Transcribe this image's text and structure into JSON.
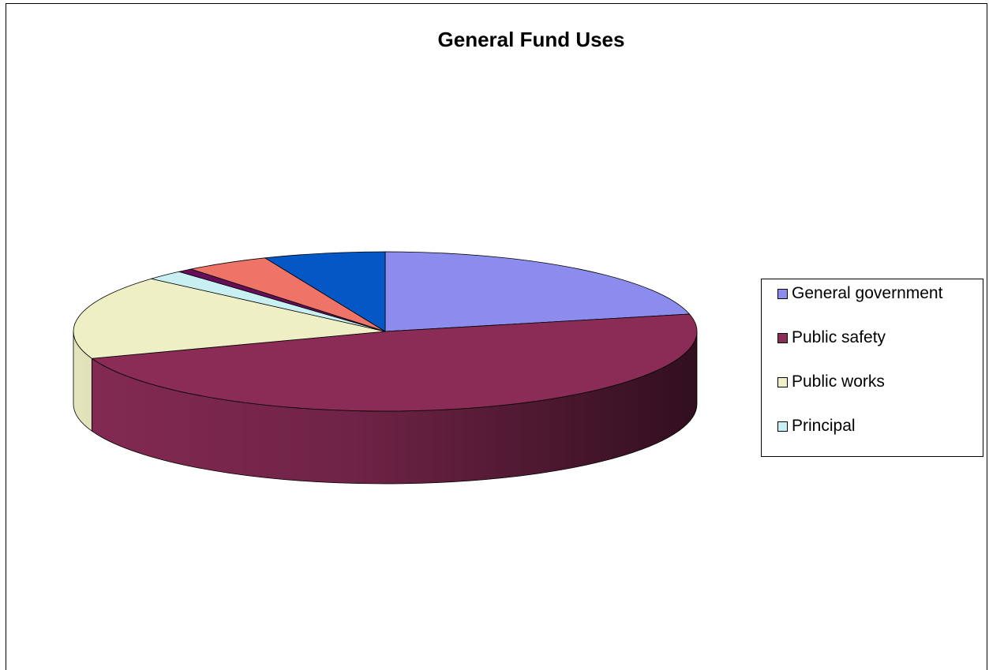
{
  "chart_data": {
    "type": "pie",
    "title": "General Fund Uses",
    "legend_position": "right",
    "slices": [
      {
        "name": "General government",
        "value": 21.5,
        "color": "#8c8cee"
      },
      {
        "name": "Public safety",
        "value": 48.0,
        "color": "#8b2c57"
      },
      {
        "name": "Public works",
        "value": 17.0,
        "color": "#efefc6"
      },
      {
        "name": "Principal",
        "value": 2.0,
        "color": "#c8f0f2"
      },
      {
        "name": "",
        "value": 0.8,
        "color": "#660e5a"
      },
      {
        "name": "",
        "value": 4.4,
        "color": "#ee7468"
      },
      {
        "name": "",
        "value": 6.3,
        "color": "#0457c4"
      }
    ]
  }
}
